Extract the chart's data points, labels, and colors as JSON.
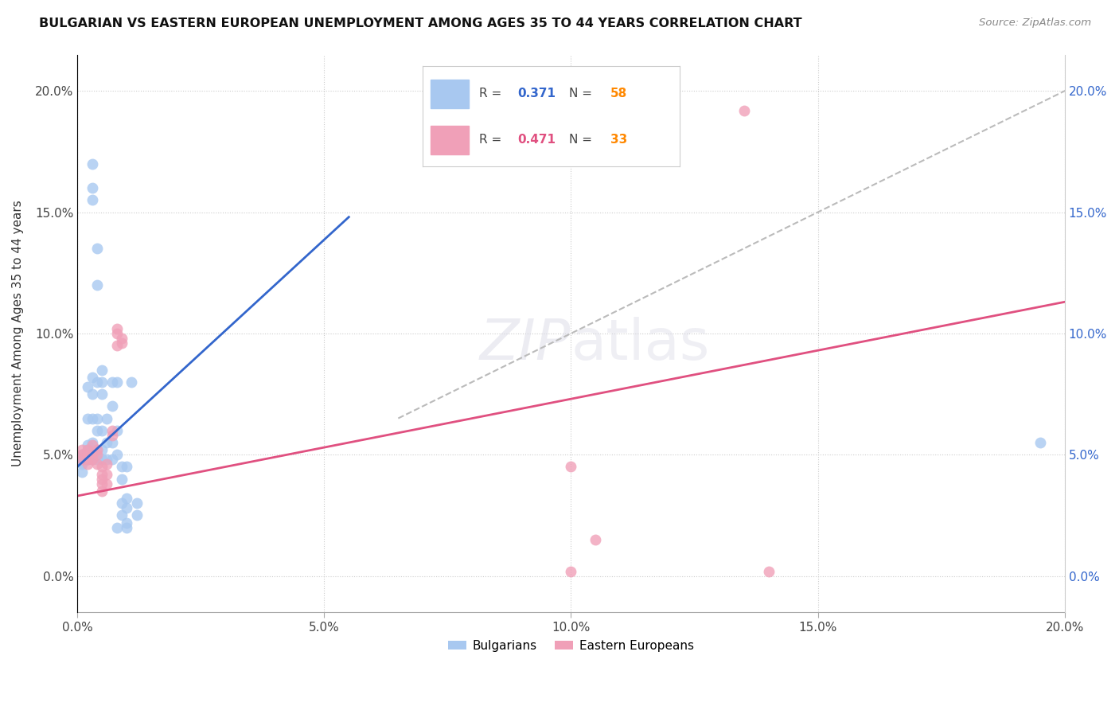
{
  "title": "BULGARIAN VS EASTERN EUROPEAN UNEMPLOYMENT AMONG AGES 35 TO 44 YEARS CORRELATION CHART",
  "source": "Source: ZipAtlas.com",
  "ylabel": "Unemployment Among Ages 35 to 44 years",
  "xlim": [
    0.0,
    0.2
  ],
  "ylim": [
    -0.015,
    0.215
  ],
  "xticks": [
    0.0,
    0.05,
    0.1,
    0.15,
    0.2
  ],
  "xticklabels": [
    "0.0%",
    "5.0%",
    "10.0%",
    "15.0%",
    "20.0%"
  ],
  "yticks": [
    0.0,
    0.05,
    0.1,
    0.15,
    0.2
  ],
  "yticklabels": [
    "0.0%",
    "5.0%",
    "10.0%",
    "15.0%",
    "20.0%"
  ],
  "blue_R": "0.371",
  "blue_N": "58",
  "pink_R": "0.471",
  "pink_N": "33",
  "blue_color": "#A8C8F0",
  "pink_color": "#F0A0B8",
  "blue_line_color": "#3366CC",
  "pink_line_color": "#E05080",
  "dash_line_color": "#BBBBBB",
  "blue_scatter": [
    [
      0.001,
      0.047
    ],
    [
      0.001,
      0.048
    ],
    [
      0.001,
      0.046
    ],
    [
      0.001,
      0.049
    ],
    [
      0.001,
      0.05
    ],
    [
      0.001,
      0.043
    ],
    [
      0.002,
      0.049
    ],
    [
      0.002,
      0.052
    ],
    [
      0.002,
      0.054
    ],
    [
      0.002,
      0.05
    ],
    [
      0.002,
      0.048
    ],
    [
      0.002,
      0.065
    ],
    [
      0.002,
      0.078
    ],
    [
      0.003,
      0.048
    ],
    [
      0.003,
      0.055
    ],
    [
      0.003,
      0.065
    ],
    [
      0.003,
      0.075
    ],
    [
      0.003,
      0.082
    ],
    [
      0.003,
      0.155
    ],
    [
      0.003,
      0.16
    ],
    [
      0.003,
      0.17
    ],
    [
      0.004,
      0.048
    ],
    [
      0.004,
      0.052
    ],
    [
      0.004,
      0.06
    ],
    [
      0.004,
      0.065
    ],
    [
      0.004,
      0.08
    ],
    [
      0.004,
      0.12
    ],
    [
      0.004,
      0.135
    ],
    [
      0.005,
      0.048
    ],
    [
      0.005,
      0.052
    ],
    [
      0.005,
      0.06
    ],
    [
      0.005,
      0.075
    ],
    [
      0.005,
      0.08
    ],
    [
      0.005,
      0.085
    ],
    [
      0.006,
      0.048
    ],
    [
      0.006,
      0.055
    ],
    [
      0.006,
      0.065
    ],
    [
      0.007,
      0.048
    ],
    [
      0.007,
      0.055
    ],
    [
      0.007,
      0.07
    ],
    [
      0.007,
      0.08
    ],
    [
      0.008,
      0.05
    ],
    [
      0.008,
      0.06
    ],
    [
      0.008,
      0.08
    ],
    [
      0.008,
      0.02
    ],
    [
      0.009,
      0.025
    ],
    [
      0.009,
      0.03
    ],
    [
      0.009,
      0.04
    ],
    [
      0.009,
      0.045
    ],
    [
      0.01,
      0.032
    ],
    [
      0.01,
      0.028
    ],
    [
      0.01,
      0.022
    ],
    [
      0.01,
      0.045
    ],
    [
      0.01,
      0.02
    ],
    [
      0.011,
      0.08
    ],
    [
      0.012,
      0.03
    ],
    [
      0.012,
      0.025
    ],
    [
      0.195,
      0.055
    ]
  ],
  "pink_scatter": [
    [
      0.001,
      0.048
    ],
    [
      0.001,
      0.05
    ],
    [
      0.001,
      0.052
    ],
    [
      0.002,
      0.046
    ],
    [
      0.002,
      0.05
    ],
    [
      0.002,
      0.048
    ],
    [
      0.002,
      0.052
    ],
    [
      0.003,
      0.05
    ],
    [
      0.003,
      0.048
    ],
    [
      0.003,
      0.054
    ],
    [
      0.004,
      0.046
    ],
    [
      0.004,
      0.05
    ],
    [
      0.004,
      0.052
    ],
    [
      0.005,
      0.035
    ],
    [
      0.005,
      0.038
    ],
    [
      0.005,
      0.04
    ],
    [
      0.005,
      0.042
    ],
    [
      0.005,
      0.045
    ],
    [
      0.006,
      0.038
    ],
    [
      0.006,
      0.042
    ],
    [
      0.006,
      0.046
    ],
    [
      0.007,
      0.058
    ],
    [
      0.007,
      0.06
    ],
    [
      0.008,
      0.095
    ],
    [
      0.008,
      0.1
    ],
    [
      0.008,
      0.102
    ],
    [
      0.009,
      0.096
    ],
    [
      0.009,
      0.098
    ],
    [
      0.1,
      0.002
    ],
    [
      0.1,
      0.045
    ],
    [
      0.105,
      0.015
    ],
    [
      0.135,
      0.192
    ],
    [
      0.14,
      0.002
    ]
  ],
  "blue_line": [
    [
      0.0,
      0.045
    ],
    [
      0.055,
      0.148
    ]
  ],
  "pink_line": [
    [
      0.0,
      0.033
    ],
    [
      0.2,
      0.113
    ]
  ],
  "dash_line": [
    [
      0.065,
      0.065
    ],
    [
      0.205,
      0.205
    ]
  ]
}
